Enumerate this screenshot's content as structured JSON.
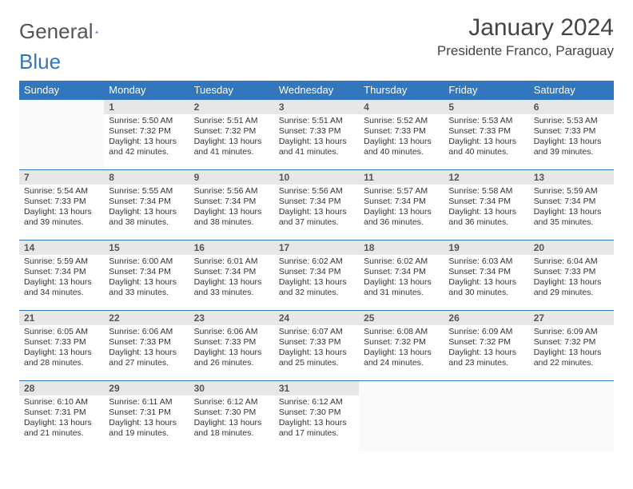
{
  "logo": {
    "part1": "General",
    "part2": "Blue"
  },
  "title": "January 2024",
  "location": "Presidente Franco, Paraguay",
  "colors": {
    "header_bg": "#3277bd",
    "header_text": "#ffffff",
    "daynum_bg": "#e7e7e7",
    "border": "#3277bd",
    "text": "#333333"
  },
  "weekdays": [
    "Sunday",
    "Monday",
    "Tuesday",
    "Wednesday",
    "Thursday",
    "Friday",
    "Saturday"
  ],
  "weeks": [
    [
      null,
      {
        "n": "1",
        "sr": "5:50 AM",
        "ss": "7:32 PM",
        "dl": "13 hours and 42 minutes."
      },
      {
        "n": "2",
        "sr": "5:51 AM",
        "ss": "7:32 PM",
        "dl": "13 hours and 41 minutes."
      },
      {
        "n": "3",
        "sr": "5:51 AM",
        "ss": "7:33 PM",
        "dl": "13 hours and 41 minutes."
      },
      {
        "n": "4",
        "sr": "5:52 AM",
        "ss": "7:33 PM",
        "dl": "13 hours and 40 minutes."
      },
      {
        "n": "5",
        "sr": "5:53 AM",
        "ss": "7:33 PM",
        "dl": "13 hours and 40 minutes."
      },
      {
        "n": "6",
        "sr": "5:53 AM",
        "ss": "7:33 PM",
        "dl": "13 hours and 39 minutes."
      }
    ],
    [
      {
        "n": "7",
        "sr": "5:54 AM",
        "ss": "7:33 PM",
        "dl": "13 hours and 39 minutes."
      },
      {
        "n": "8",
        "sr": "5:55 AM",
        "ss": "7:34 PM",
        "dl": "13 hours and 38 minutes."
      },
      {
        "n": "9",
        "sr": "5:56 AM",
        "ss": "7:34 PM",
        "dl": "13 hours and 38 minutes."
      },
      {
        "n": "10",
        "sr": "5:56 AM",
        "ss": "7:34 PM",
        "dl": "13 hours and 37 minutes."
      },
      {
        "n": "11",
        "sr": "5:57 AM",
        "ss": "7:34 PM",
        "dl": "13 hours and 36 minutes."
      },
      {
        "n": "12",
        "sr": "5:58 AM",
        "ss": "7:34 PM",
        "dl": "13 hours and 36 minutes."
      },
      {
        "n": "13",
        "sr": "5:59 AM",
        "ss": "7:34 PM",
        "dl": "13 hours and 35 minutes."
      }
    ],
    [
      {
        "n": "14",
        "sr": "5:59 AM",
        "ss": "7:34 PM",
        "dl": "13 hours and 34 minutes."
      },
      {
        "n": "15",
        "sr": "6:00 AM",
        "ss": "7:34 PM",
        "dl": "13 hours and 33 minutes."
      },
      {
        "n": "16",
        "sr": "6:01 AM",
        "ss": "7:34 PM",
        "dl": "13 hours and 33 minutes."
      },
      {
        "n": "17",
        "sr": "6:02 AM",
        "ss": "7:34 PM",
        "dl": "13 hours and 32 minutes."
      },
      {
        "n": "18",
        "sr": "6:02 AM",
        "ss": "7:34 PM",
        "dl": "13 hours and 31 minutes."
      },
      {
        "n": "19",
        "sr": "6:03 AM",
        "ss": "7:34 PM",
        "dl": "13 hours and 30 minutes."
      },
      {
        "n": "20",
        "sr": "6:04 AM",
        "ss": "7:33 PM",
        "dl": "13 hours and 29 minutes."
      }
    ],
    [
      {
        "n": "21",
        "sr": "6:05 AM",
        "ss": "7:33 PM",
        "dl": "13 hours and 28 minutes."
      },
      {
        "n": "22",
        "sr": "6:06 AM",
        "ss": "7:33 PM",
        "dl": "13 hours and 27 minutes."
      },
      {
        "n": "23",
        "sr": "6:06 AM",
        "ss": "7:33 PM",
        "dl": "13 hours and 26 minutes."
      },
      {
        "n": "24",
        "sr": "6:07 AM",
        "ss": "7:33 PM",
        "dl": "13 hours and 25 minutes."
      },
      {
        "n": "25",
        "sr": "6:08 AM",
        "ss": "7:32 PM",
        "dl": "13 hours and 24 minutes."
      },
      {
        "n": "26",
        "sr": "6:09 AM",
        "ss": "7:32 PM",
        "dl": "13 hours and 23 minutes."
      },
      {
        "n": "27",
        "sr": "6:09 AM",
        "ss": "7:32 PM",
        "dl": "13 hours and 22 minutes."
      }
    ],
    [
      {
        "n": "28",
        "sr": "6:10 AM",
        "ss": "7:31 PM",
        "dl": "13 hours and 21 minutes."
      },
      {
        "n": "29",
        "sr": "6:11 AM",
        "ss": "7:31 PM",
        "dl": "13 hours and 19 minutes."
      },
      {
        "n": "30",
        "sr": "6:12 AM",
        "ss": "7:30 PM",
        "dl": "13 hours and 18 minutes."
      },
      {
        "n": "31",
        "sr": "6:12 AM",
        "ss": "7:30 PM",
        "dl": "13 hours and 17 minutes."
      },
      null,
      null,
      null
    ]
  ],
  "labels": {
    "sunrise": "Sunrise: ",
    "sunset": "Sunset: ",
    "daylight": "Daylight: "
  }
}
